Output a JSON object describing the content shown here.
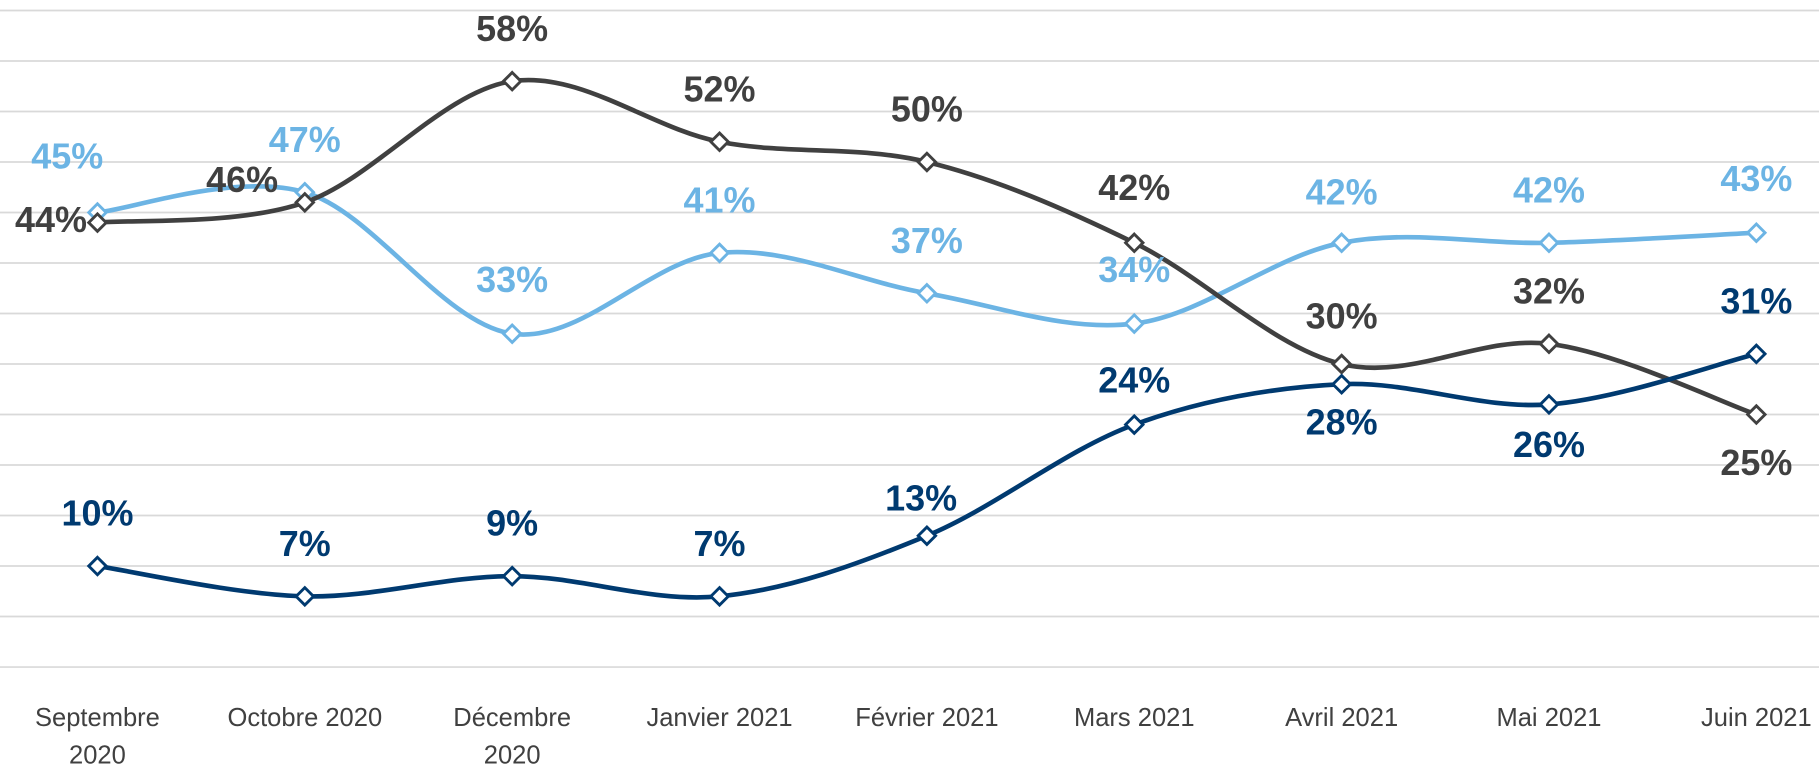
{
  "chart_data": {
    "type": "line",
    "categories": [
      "Septembre 2020",
      "Octobre 2020",
      "Décembre 2020",
      "Janvier 2021",
      "Février 2021",
      "Mars 2021",
      "Avril 2021",
      "Mai 2021",
      "Juin 2021"
    ],
    "series": [
      {
        "color": "#6cb4e4",
        "values": [
          45,
          47,
          33,
          41,
          37,
          34,
          42,
          42,
          43
        ],
        "value_labels": [
          "45%",
          "47%",
          "33%",
          "41%",
          "37%",
          "34%",
          "42%",
          "42%",
          "43%"
        ]
      },
      {
        "color": "#404040",
        "values": [
          44,
          46,
          58,
          52,
          50,
          42,
          30,
          32,
          25
        ],
        "value_labels": [
          "44%",
          "46%",
          "58%",
          "52%",
          "50%",
          "42%",
          "30%",
          "32%",
          "25%"
        ]
      },
      {
        "color": "#003a70",
        "values": [
          10,
          7,
          9,
          7,
          13,
          24,
          28,
          26,
          31
        ],
        "value_labels": [
          "10%",
          "7%",
          "9%",
          "7%",
          "13%",
          "24%",
          "28%",
          "26%",
          "31%"
        ]
      }
    ],
    "ylim": [
      0,
      65
    ],
    "yticks": [
      0,
      5,
      10,
      15,
      20,
      25,
      30,
      35,
      40,
      45,
      50,
      55,
      60,
      65
    ],
    "grid": true
  }
}
